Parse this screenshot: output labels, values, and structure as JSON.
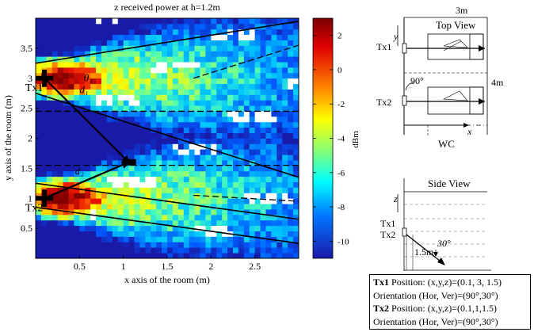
{
  "chart_data": {
    "type": "heatmap",
    "title": "z received power at h=1.2m",
    "xlabel": "x axis of the room (m)",
    "ylabel": "y axis of the room (m)",
    "xlim": [
      0,
      3
    ],
    "ylim": [
      0,
      4
    ],
    "xticks": [
      "0.5",
      "1",
      "1.5",
      "2",
      "2.5"
    ],
    "xtick_values": [
      0.5,
      1,
      1.5,
      2,
      2.5
    ],
    "yticks": [
      "0.5",
      "1",
      "1.5",
      "2",
      "2.5",
      "3",
      "3.5"
    ],
    "ytick_values": [
      0.5,
      1,
      1.5,
      2,
      2.5,
      3,
      3.5
    ],
    "colorbar": {
      "label": "dBm",
      "range": [
        -11,
        3
      ],
      "ticks": [
        "2",
        "0",
        "-2",
        "-4",
        "-6",
        "-8",
        "-10"
      ],
      "tick_values": [
        2,
        0,
        -2,
        -4,
        -6,
        -8,
        -10
      ]
    },
    "transmitters": [
      {
        "name": "Tx1",
        "x": 0.1,
        "y": 3.0
      },
      {
        "name": "Tx2",
        "x": 0.1,
        "y": 1.0
      }
    ],
    "meeting_point": {
      "x": 1.1,
      "y": 1.6
    },
    "labels": {
      "d1": "d₁",
      "d2": "d₂",
      "theta1": "θ₁"
    }
  },
  "top_view": {
    "title": "Top View",
    "width_label": "3m",
    "height_label": "4m",
    "angle_label": "90°",
    "wc_label": "WC",
    "y_axis": "y",
    "x_axis": "x",
    "tx1": "Tx1",
    "tx2": "Tx2"
  },
  "side_view": {
    "title": "Side View",
    "z_axis": "z",
    "tx1": "Tx1",
    "tx2": "Tx2",
    "angle_label": "30°",
    "height_label": "1.5m"
  },
  "info": {
    "tx1_name": "Tx1",
    "tx1_position": " Position: (x,y,z)=(0.1, 3, 1.5)",
    "tx1_orientation": "Orientation (Hor, Ver)=(90°,30°)",
    "tx2_name": "Tx2",
    "tx2_position": " Position: (x,y,z)=(0.1,1,1.5)",
    "tx2_orientation": "Orientation (Hor, Ver)=(90°,30°)"
  },
  "colors": {
    "high": "#8b0000",
    "mid": "#ffff00",
    "low": "#1a1aa8",
    "bg": "#ffffff"
  }
}
